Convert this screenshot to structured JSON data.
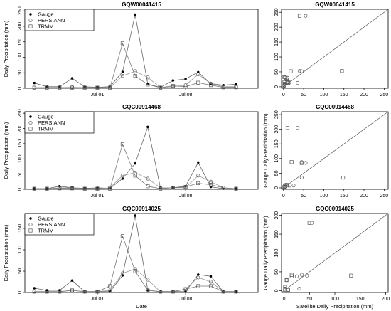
{
  "chart_data": [
    {
      "type": "line",
      "title": "GQW00041415",
      "xlabel": "",
      "ylabel": "Daily Precipitation (mm)",
      "x_ticks": [
        {
          "x": 6,
          "label": "Jul 01"
        },
        {
          "x": 13,
          "label": "Jul 08"
        }
      ],
      "y_ticks": [
        0,
        50,
        100,
        150,
        200,
        250
      ],
      "ylim": [
        0,
        255
      ],
      "x": [
        1,
        2,
        3,
        4,
        5,
        6,
        7,
        8,
        9,
        10,
        11,
        12,
        13,
        14,
        15,
        16,
        17,
        18
      ],
      "legend_position": "top-left",
      "series": [
        {
          "name": "Gauge",
          "marker": "filled-circle",
          "values": [
            17,
            5,
            5,
            32,
            5,
            3,
            5,
            53,
            238,
            13,
            3,
            25,
            30,
            52,
            15,
            10,
            13,
            null
          ]
        },
        {
          "name": "PERSIANN",
          "marker": "open-circle",
          "values": [
            2,
            2,
            2,
            3,
            2,
            2,
            2,
            40,
            55,
            35,
            2,
            5,
            10,
            45,
            15,
            5,
            5,
            null
          ]
        },
        {
          "name": "TRMM",
          "marker": "open-square",
          "values": [
            2,
            2,
            2,
            2,
            2,
            2,
            2,
            145,
            40,
            12,
            2,
            8,
            5,
            18,
            10,
            3,
            3,
            null
          ]
        }
      ]
    },
    {
      "type": "line",
      "title": "GQC00914468",
      "xlabel": "",
      "ylabel": "Daily Precipitation (mm)",
      "x_ticks": [
        {
          "x": 6,
          "label": "Jul 01"
        },
        {
          "x": 13,
          "label": "Jul 08"
        }
      ],
      "y_ticks": [
        0,
        50,
        100,
        150,
        200,
        250
      ],
      "ylim": [
        0,
        255
      ],
      "x": [
        1,
        2,
        3,
        4,
        5,
        6,
        7,
        8,
        9,
        10,
        11,
        12,
        13,
        14,
        15,
        16,
        17,
        18
      ],
      "legend_position": "top-left",
      "series": [
        {
          "name": "Gauge",
          "marker": "filled-circle",
          "values": [
            2,
            2,
            10,
            5,
            3,
            5,
            3,
            35,
            85,
            205,
            5,
            5,
            10,
            88,
            8,
            2,
            2,
            null
          ]
        },
        {
          "name": "PERSIANN",
          "marker": "open-circle",
          "values": [
            2,
            2,
            5,
            5,
            2,
            2,
            5,
            45,
            55,
            35,
            5,
            5,
            5,
            45,
            25,
            5,
            2,
            null
          ]
        },
        {
          "name": "TRMM",
          "marker": "open-square",
          "values": [
            2,
            2,
            3,
            3,
            2,
            2,
            2,
            148,
            45,
            10,
            2,
            5,
            8,
            20,
            15,
            5,
            2,
            null
          ]
        }
      ]
    },
    {
      "type": "line",
      "title": "GQC00914025",
      "xlabel": "Date",
      "ylabel": "Daily Precipitation (mm)",
      "x_ticks": [
        {
          "x": 6,
          "label": "Jul 01"
        },
        {
          "x": 13,
          "label": "Jul 08"
        }
      ],
      "y_ticks": [
        0,
        50,
        100,
        150
      ],
      "ylim": [
        0,
        185
      ],
      "x": [
        1,
        2,
        3,
        4,
        5,
        6,
        7,
        8,
        9,
        10,
        11,
        12,
        13,
        14,
        15,
        16,
        17,
        18
      ],
      "legend_position": "top-left",
      "series": [
        {
          "name": "Gauge",
          "marker": "filled-circle",
          "values": [
            10,
            5,
            5,
            28,
            2,
            2,
            2,
            40,
            180,
            5,
            2,
            2,
            2,
            42,
            38,
            2,
            2,
            null
          ]
        },
        {
          "name": "PERSIANN",
          "marker": "open-circle",
          "values": [
            2,
            2,
            2,
            5,
            2,
            2,
            5,
            45,
            55,
            30,
            2,
            2,
            8,
            35,
            25,
            2,
            2,
            null
          ]
        },
        {
          "name": "TRMM",
          "marker": "open-square",
          "values": [
            2,
            2,
            2,
            5,
            2,
            2,
            15,
            132,
            50,
            5,
            2,
            2,
            8,
            15,
            15,
            2,
            2,
            null
          ]
        }
      ]
    },
    {
      "type": "scatter",
      "title": "GQW00041415",
      "xlabel": "",
      "ylabel": "",
      "xlim": [
        -5,
        260
      ],
      "ylim": [
        -5,
        260
      ],
      "x_ticks": [
        0,
        50,
        100,
        150,
        200,
        250
      ],
      "y_ticks": [
        0,
        50,
        100,
        150,
        200,
        250
      ],
      "one_to_one_line": true,
      "series": [
        {
          "name": "PERSIANN",
          "marker": "open-circle",
          "points": [
            [
              2,
              17
            ],
            [
              2,
              5
            ],
            [
              3,
              32
            ],
            [
              40,
              53
            ],
            [
              45,
              52
            ],
            [
              35,
              13
            ],
            [
              10,
              30
            ],
            [
              55,
              238
            ],
            [
              5,
              25
            ],
            [
              15,
              15
            ],
            [
              5,
              10
            ],
            [
              2,
              3
            ]
          ]
        },
        {
          "name": "TRMM",
          "marker": "open-square",
          "points": [
            [
              145,
              53
            ],
            [
              40,
              238
            ],
            [
              12,
              13
            ],
            [
              18,
              52
            ],
            [
              8,
              25
            ],
            [
              5,
              30
            ],
            [
              2,
              32
            ],
            [
              2,
              17
            ],
            [
              10,
              15
            ],
            [
              3,
              10
            ],
            [
              2,
              5
            ]
          ]
        }
      ]
    },
    {
      "type": "scatter",
      "title": "GQC00914468",
      "xlabel": "",
      "ylabel": "Gauge Daily Precipitation (mm)",
      "xlim": [
        -5,
        260
      ],
      "ylim": [
        -5,
        260
      ],
      "x_ticks": [
        0,
        50,
        100,
        150,
        200,
        250
      ],
      "y_ticks": [
        0,
        50,
        100,
        150,
        200,
        250
      ],
      "one_to_one_line": true,
      "series": [
        {
          "name": "PERSIANN",
          "marker": "open-circle",
          "points": [
            [
              45,
              35
            ],
            [
              55,
              85
            ],
            [
              35,
              205
            ],
            [
              45,
              88
            ],
            [
              5,
              10
            ],
            [
              25,
              8
            ],
            [
              5,
              5
            ],
            [
              2,
              2
            ],
            [
              5,
              3
            ]
          ]
        },
        {
          "name": "TRMM",
          "marker": "open-square",
          "points": [
            [
              148,
              35
            ],
            [
              45,
              85
            ],
            [
              10,
              205
            ],
            [
              20,
              88
            ],
            [
              8,
              10
            ],
            [
              15,
              8
            ],
            [
              3,
              5
            ],
            [
              2,
              2
            ],
            [
              2,
              3
            ]
          ]
        }
      ]
    },
    {
      "type": "scatter",
      "title": "GQC00914025",
      "xlabel": "Satellite Daily Precipitation (mm)",
      "ylabel": "Gauge Daily Precipitation (mm)",
      "xlim": [
        -5,
        205
      ],
      "ylim": [
        -5,
        205
      ],
      "x_ticks": [
        0,
        50,
        100,
        150,
        200
      ],
      "y_ticks": [
        0,
        50,
        100,
        150,
        200
      ],
      "one_to_one_line": true,
      "series": [
        {
          "name": "PERSIANN",
          "marker": "open-circle",
          "points": [
            [
              45,
              40
            ],
            [
              55,
              180
            ],
            [
              30,
              5
            ],
            [
              35,
              42
            ],
            [
              25,
              38
            ],
            [
              5,
              28
            ],
            [
              8,
              2
            ],
            [
              2,
              10
            ],
            [
              2,
              5
            ]
          ]
        },
        {
          "name": "TRMM",
          "marker": "open-square",
          "points": [
            [
              132,
              40
            ],
            [
              50,
              180
            ],
            [
              15,
              42
            ],
            [
              15,
              38
            ],
            [
              5,
              28
            ],
            [
              8,
              2
            ],
            [
              2,
              10
            ],
            [
              2,
              2
            ],
            [
              2,
              5
            ]
          ]
        }
      ]
    }
  ]
}
